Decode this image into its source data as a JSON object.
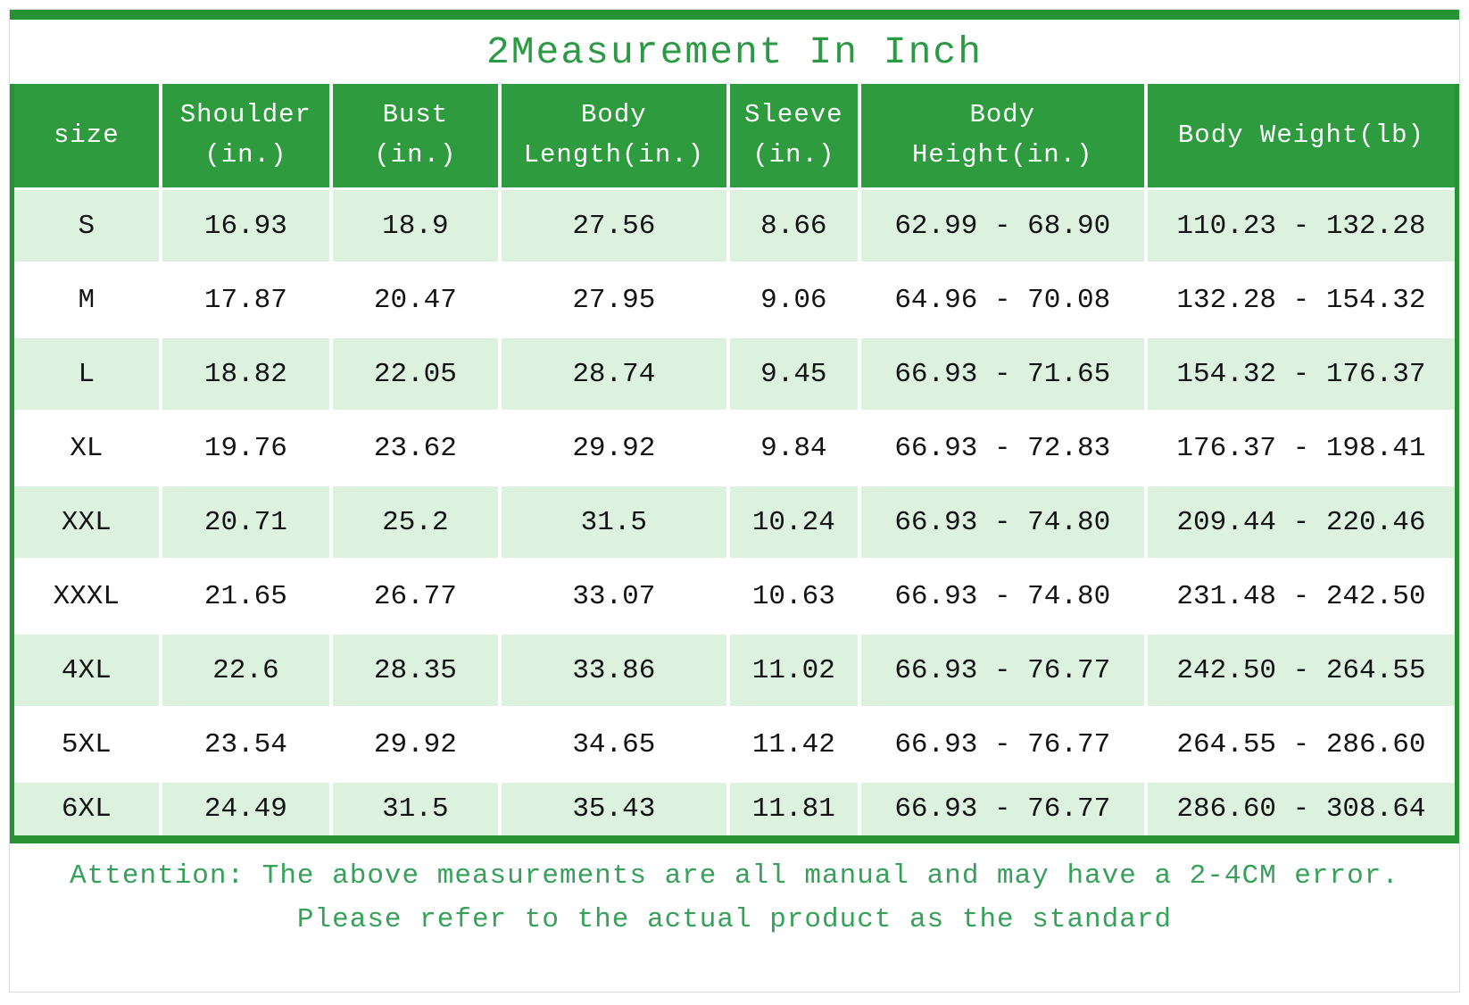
{
  "title": "2Measurement In Inch",
  "table": {
    "headers": [
      "size",
      "Shoulder\n(in.)",
      "Bust\n(in.)",
      "Body\nLength(in.)",
      "Sleeve\n(in.)",
      "Body\nHeight(in.)",
      "Body Weight(lb)"
    ]
  },
  "chart_data": {
    "type": "table",
    "title": "2Measurement In Inch",
    "columns": [
      "size",
      "Shoulder (in.)",
      "Bust (in.)",
      "Body Length(in.)",
      "Sleeve (in.)",
      "Body Height(in.)",
      "Body Weight(lb)"
    ],
    "rows": [
      [
        "S",
        "16.93",
        "18.9",
        "27.56",
        "8.66",
        "62.99 - 68.90",
        "110.23 - 132.28"
      ],
      [
        "M",
        "17.87",
        "20.47",
        "27.95",
        "9.06",
        "64.96 - 70.08",
        "132.28 - 154.32"
      ],
      [
        "L",
        "18.82",
        "22.05",
        "28.74",
        "9.45",
        "66.93 - 71.65",
        "154.32 - 176.37"
      ],
      [
        "XL",
        "19.76",
        "23.62",
        "29.92",
        "9.84",
        "66.93 - 72.83",
        "176.37 - 198.41"
      ],
      [
        "XXL",
        "20.71",
        "25.2",
        "31.5",
        "10.24",
        "66.93 - 74.80",
        "209.44 - 220.46"
      ],
      [
        "XXXL",
        "21.65",
        "26.77",
        "33.07",
        "10.63",
        "66.93 - 74.80",
        "231.48 - 242.50"
      ],
      [
        "4XL",
        "22.6",
        "28.35",
        "33.86",
        "11.02",
        "66.93 - 76.77",
        "242.50 - 264.55"
      ],
      [
        "5XL",
        "23.54",
        "29.92",
        "34.65",
        "11.42",
        "66.93 - 76.77",
        "264.55 - 286.60"
      ],
      [
        "6XL",
        "24.49",
        "31.5",
        "35.43",
        "11.81",
        "66.93 - 76.77",
        "286.60 - 308.64"
      ]
    ]
  },
  "attention": {
    "line1": "Attention: The above measurements are all manual and may have a 2-4CM error.",
    "line2": "Please refer to the actual product as the standard"
  },
  "colors": {
    "header_green": "#2e9b3e",
    "border_green": "#279234",
    "title_green": "#2c9a44",
    "note_green": "#37a05a",
    "light_row": "#dcf1de"
  }
}
